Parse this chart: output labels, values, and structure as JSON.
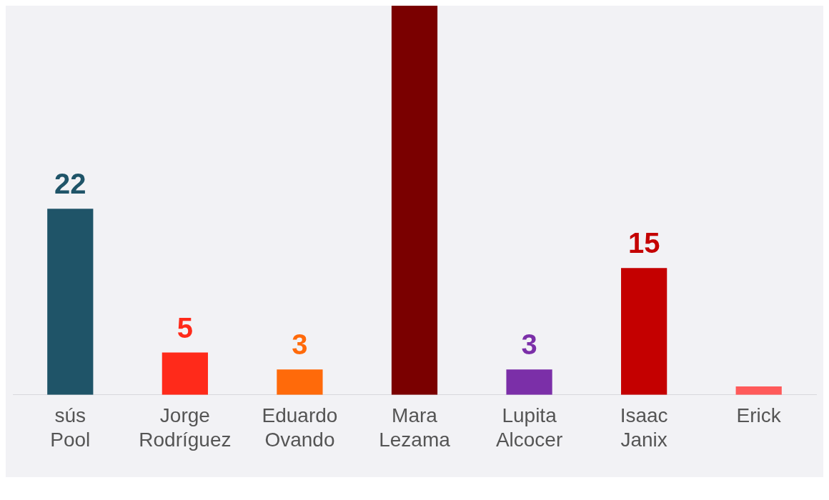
{
  "chart_data": {
    "type": "bar",
    "categories": [
      "sús Pool",
      "Jorge Rodríguez",
      "Eduardo Ovando",
      "Mara Lezama",
      "Lupita Alcocer",
      "Isaac Janix",
      "Erick"
    ],
    "values": [
      22,
      5,
      3,
      46,
      3,
      15,
      1
    ],
    "colors": [
      "#1f5468",
      "#ff2a1a",
      "#ff6a0a",
      "#7a0000",
      "#7b2fa8",
      "#c40000",
      "#ff5a5a"
    ],
    "value_labels": [
      "22",
      "5",
      "3",
      null,
      "3",
      "15",
      null
    ],
    "ylim": [
      0,
      46
    ],
    "grid": false,
    "legend": false
  }
}
